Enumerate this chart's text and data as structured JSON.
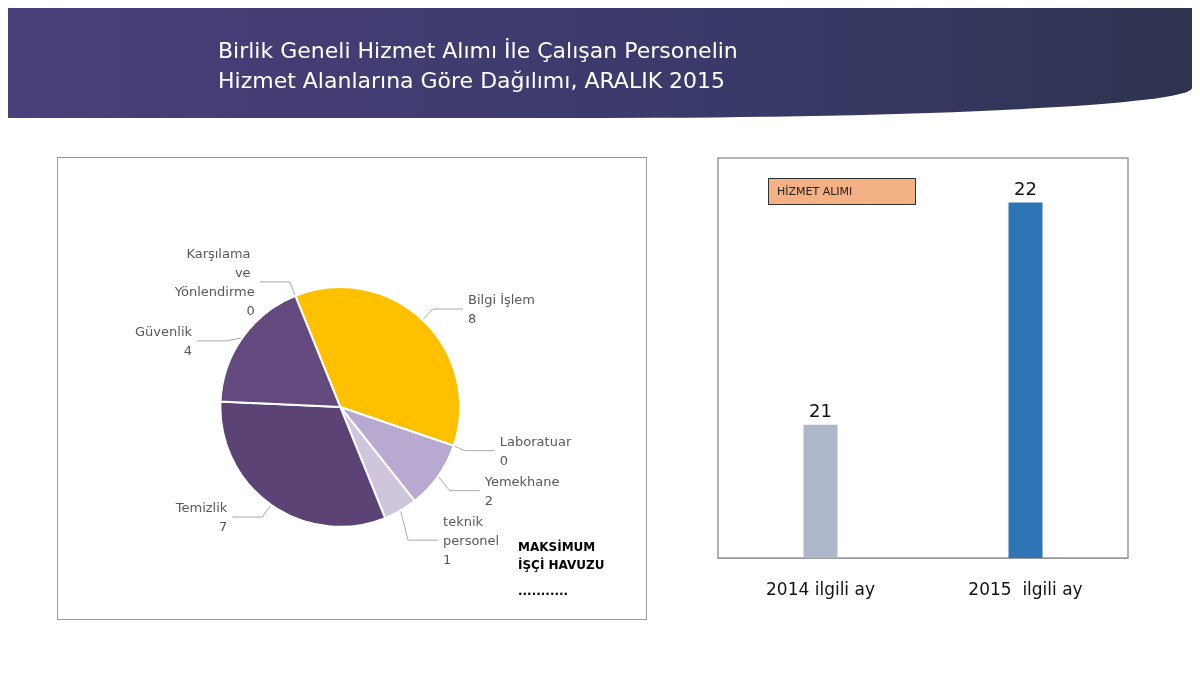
{
  "chart_data": [
    {
      "type": "pie",
      "title": "Birlik Geneli Hizmet Alımı İle Çalışan Personelin Hizmet Alanlarına Göre Dağılımı, ARALIK 2015",
      "categories": [
        "Karşılama ve Yönlendirme",
        "Bilgi İşlem",
        "Laboratuar",
        "Yemekhane",
        "teknik personel",
        "Temizlik",
        "Güvenlik"
      ],
      "values": [
        0,
        8,
        0,
        2,
        1,
        7,
        4
      ],
      "value_labels": [
        "0",
        "8",
        "0",
        "2",
        "1",
        "7",
        "4"
      ],
      "colors": [
        "#725b98",
        "#ffc000",
        "#9e8cbd",
        "#b7a9d0",
        "#cfc6de",
        "#5b4475",
        "#64497f"
      ],
      "annotations": [
        "MAKSİMUM İŞÇİ HAVUZU",
        "..........."
      ]
    },
    {
      "type": "bar",
      "title": "HİZMET ALIMI",
      "categories": [
        "2014 ilgili ay",
        "2015  ilgili ay"
      ],
      "values": [
        21,
        22
      ],
      "colors": [
        "#adb9ca",
        "#2e75b6"
      ],
      "ylim": [
        20.4,
        22.2
      ],
      "data_labels": true
    }
  ]
}
